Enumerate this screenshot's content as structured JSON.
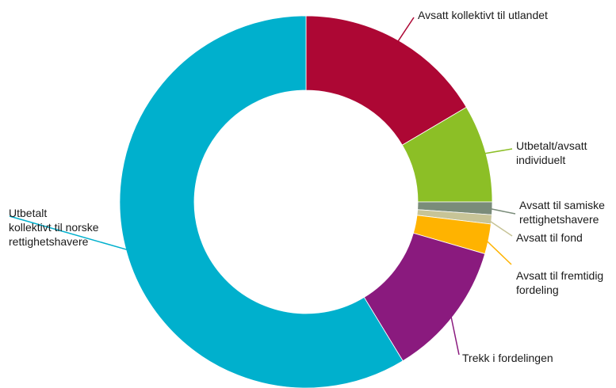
{
  "chart_data": {
    "type": "pie",
    "variant": "donut",
    "title": "",
    "legend": "none",
    "slices": [
      {
        "label": "Avsatt kollektivt til utlandet",
        "value": 16.5,
        "color": "#ad0734"
      },
      {
        "label": "Utbetalt/avsatt\nindividuelt",
        "value": 8.5,
        "color": "#8cbf26"
      },
      {
        "label": "Avsatt til samiske\nrettighetshavere",
        "value": 1.1,
        "color": "#7a8c7a"
      },
      {
        "label": "Avsatt til fond",
        "value": 0.8,
        "color": "#c7c497"
      },
      {
        "label": "Avsatt til fremtidig\nfordeling",
        "value": 2.6,
        "color": "#ffb300"
      },
      {
        "label": "Trekk i fordelingen",
        "value": 11.8,
        "color": "#8a1a7e"
      },
      {
        "label": "Utbetalt\nkollektivt til norske\nrettighetshavere",
        "value": 58.7,
        "color": "#00b0cd"
      }
    ]
  }
}
